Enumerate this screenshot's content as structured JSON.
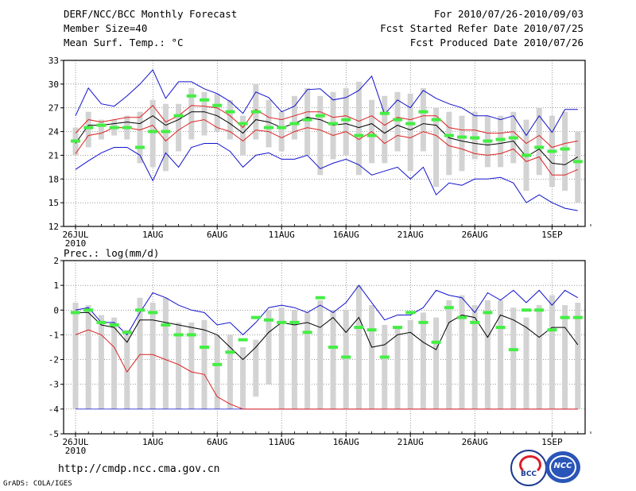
{
  "header": {
    "title": "DERF/NCC/BCC Monthly Forecast",
    "member_size": "Member Size=40",
    "variable": "Mean Surf. Temp.: °C",
    "period": "For 2010/07/26-2010/09/03",
    "refer_date": "Fcst Started Refer Date 2010/07/25",
    "produced_date": "Fcst Produced Date 2010/07/26"
  },
  "footer": {
    "url": "http://cmdp.ncc.cma.gov.cn",
    "credit": "GrADS: COLA/IGES",
    "logo1_text": "BCC",
    "logo2_text": "NCC"
  },
  "colors": {
    "box": "#d3d3d3",
    "median": "#44ee44",
    "mean": "#000000",
    "stddev": "#dd2222",
    "extreme": "#1111cc"
  },
  "chart_data": [
    {
      "type": "box",
      "title": "Mean Surf. Temp.: °C",
      "ylim": [
        12,
        33
      ],
      "yticks": [
        12,
        15,
        18,
        21,
        24,
        27,
        30,
        33
      ],
      "x_tick_labels": [
        "26JUL",
        "1AUG",
        "6AUG",
        "11AUG",
        "16AUG",
        "21AUG",
        "26AUG",
        "1SEP"
      ],
      "x_tick_days": [
        0,
        6,
        11,
        16,
        21,
        26,
        31,
        37
      ],
      "x_sublabel": "2010",
      "days": 40,
      "series": {
        "max": [
          26.0,
          29.5,
          27.5,
          27.2,
          28.5,
          30.0,
          31.8,
          28.2,
          30.3,
          30.3,
          29.4,
          28.8,
          27.8,
          26.3,
          29.0,
          28.3,
          26.5,
          27.2,
          29.3,
          29.4,
          28.0,
          28.3,
          29.2,
          31.0,
          26.2,
          28.0,
          27.0,
          29.2,
          28.2,
          27.5,
          27.0,
          26.0,
          26.0,
          25.5,
          26.0,
          23.5,
          26.0,
          23.9,
          26.8,
          26.8
        ],
        "mean_plus_sd": [
          23.8,
          25.5,
          25.2,
          25.5,
          25.8,
          25.8,
          27.3,
          25.2,
          26.0,
          27.3,
          27.2,
          27.0,
          26.0,
          24.5,
          26.8,
          25.8,
          25.5,
          26.0,
          26.5,
          26.5,
          25.8,
          26.0,
          25.3,
          26.0,
          24.8,
          25.8,
          25.5,
          26.0,
          26.0,
          24.5,
          24.2,
          24.2,
          23.8,
          23.8,
          24.0,
          22.5,
          23.5,
          22.0,
          22.5,
          22.8
        ],
        "mean": [
          22.5,
          24.8,
          24.8,
          25.0,
          25.2,
          25.0,
          26.0,
          24.8,
          25.5,
          26.5,
          26.5,
          26.0,
          25.0,
          23.8,
          25.5,
          25.2,
          24.5,
          25.0,
          25.8,
          25.5,
          24.8,
          25.0,
          24.5,
          25.0,
          23.8,
          24.8,
          24.2,
          25.0,
          24.8,
          23.2,
          22.8,
          22.5,
          22.3,
          22.5,
          22.8,
          20.8,
          21.8,
          20.0,
          19.8,
          20.8
        ],
        "mean_minus_sd": [
          21.2,
          23.5,
          23.8,
          24.5,
          24.5,
          24.2,
          24.8,
          22.8,
          24.2,
          25.2,
          25.5,
          24.5,
          24.0,
          22.8,
          24.2,
          24.0,
          23.2,
          24.0,
          24.5,
          24.2,
          23.5,
          24.0,
          23.0,
          24.0,
          22.5,
          23.5,
          23.2,
          24.0,
          23.5,
          22.2,
          21.8,
          21.2,
          21.0,
          21.2,
          21.8,
          20.2,
          20.8,
          18.5,
          18.5,
          19.2
        ],
        "min": [
          19.2,
          20.3,
          21.3,
          22.0,
          22.0,
          21.0,
          17.8,
          21.3,
          19.5,
          22.0,
          22.5,
          22.5,
          21.5,
          19.5,
          21.0,
          21.3,
          20.5,
          20.5,
          21.0,
          19.3,
          20.0,
          20.5,
          19.8,
          18.5,
          19.0,
          19.5,
          18.0,
          19.5,
          16.0,
          17.5,
          17.2,
          18.0,
          18.0,
          18.2,
          17.5,
          15.0,
          16.0,
          15.0,
          14.3,
          14.0
        ],
        "box_hi": [
          24.5,
          26.5,
          25.5,
          25.5,
          26.0,
          26.5,
          28.0,
          27.5,
          27.5,
          29.5,
          29.0,
          28.8,
          28.0,
          26.0,
          30.0,
          28.0,
          26.5,
          28.5,
          29.5,
          28.5,
          29.0,
          29.5,
          30.3,
          28.0,
          28.5,
          29.0,
          28.8,
          29.5,
          27.0,
          26.5,
          26.0,
          26.5,
          26.0,
          26.0,
          26.5,
          25.5,
          27.0,
          26.0,
          26.5,
          24.0
        ],
        "box_lo": [
          21.0,
          22.0,
          23.0,
          23.5,
          23.0,
          20.0,
          19.5,
          19.0,
          21.5,
          23.0,
          23.5,
          24.0,
          23.0,
          21.0,
          23.0,
          22.0,
          21.5,
          23.0,
          21.0,
          18.5,
          20.5,
          21.0,
          18.5,
          20.0,
          20.0,
          21.5,
          19.0,
          21.5,
          17.0,
          18.5,
          19.0,
          20.5,
          19.5,
          19.5,
          20.0,
          16.5,
          18.5,
          17.0,
          16.5,
          15.0
        ],
        "median": [
          22.8,
          24.5,
          24.8,
          24.5,
          24.5,
          22.0,
          24.0,
          24.0,
          26.0,
          28.5,
          28.0,
          27.3,
          26.5,
          25.0,
          26.5,
          24.5,
          24.5,
          25.0,
          25.5,
          26.0,
          25.0,
          25.5,
          23.5,
          23.5,
          26.3,
          25.5,
          25.0,
          26.5,
          25.5,
          23.5,
          23.3,
          23.2,
          22.8,
          23.0,
          23.2,
          21.0,
          22.0,
          21.5,
          21.8,
          20.2
        ]
      }
    },
    {
      "type": "box",
      "title": "Prec.: log(mm/d)",
      "ylim": [
        -5,
        2
      ],
      "yticks": [
        -5,
        -4,
        -3,
        -2,
        -1,
        0,
        1,
        2
      ],
      "x_tick_labels": [
        "26JUL",
        "1AUG",
        "6AUG",
        "11AUG",
        "16AUG",
        "21AUG",
        "26AUG",
        "1SEP"
      ],
      "x_tick_days": [
        0,
        6,
        11,
        16,
        21,
        26,
        31,
        37
      ],
      "x_sublabel": "2010",
      "days": 40,
      "series": {
        "max": [
          0.0,
          0.1,
          -0.5,
          -0.5,
          -1.0,
          -0.1,
          0.7,
          0.5,
          0.2,
          0.0,
          -0.1,
          -0.6,
          -0.5,
          -1.0,
          -0.5,
          0.1,
          0.2,
          0.1,
          -0.1,
          0.2,
          -0.1,
          0.3,
          1.0,
          0.3,
          -0.4,
          -0.2,
          -0.2,
          0.1,
          0.8,
          0.6,
          0.5,
          -0.1,
          0.7,
          0.4,
          0.8,
          0.3,
          0.8,
          0.2,
          0.8,
          0.5
        ],
        "mean": [
          -0.1,
          -0.1,
          -0.6,
          -0.7,
          -1.3,
          -0.4,
          -0.4,
          -0.5,
          -0.6,
          -0.7,
          -0.8,
          -1.0,
          -1.5,
          -2.0,
          -1.5,
          -0.9,
          -0.5,
          -0.6,
          -0.5,
          -0.7,
          -0.3,
          -0.9,
          -0.3,
          -1.5,
          -1.4,
          -1.0,
          -0.9,
          -1.3,
          -1.6,
          -0.5,
          -0.2,
          -0.3,
          -1.1,
          -0.2,
          -0.4,
          -0.7,
          -1.1,
          -0.7,
          -0.7,
          -1.4
        ],
        "mean_minus_sd": [
          -1.0,
          -0.8,
          -1.0,
          -1.5,
          -2.5,
          -1.8,
          -1.8,
          -2.0,
          -2.2,
          -2.5,
          -2.6,
          -3.5,
          -3.8,
          -4.0,
          -4.0,
          -4.0,
          -4.0,
          -4.0,
          -4.0,
          -4.0,
          -4.0,
          -4.0,
          -4.0,
          -4.0,
          -4.0,
          -4.0,
          -4.0,
          -4.0,
          -4.0,
          -4.0,
          -4.0,
          -4.0,
          -4.0,
          -4.0,
          -4.0,
          -4.0,
          -4.0,
          -4.0,
          -4.0,
          -4.0
        ],
        "min": [
          -4.0,
          -4.0,
          -4.0,
          -4.0,
          -4.0,
          -4.0,
          -4.0,
          -4.0,
          -4.0,
          -4.0,
          -4.0,
          -4.0,
          -4.0,
          -4.0,
          -4.0,
          -4.0,
          -4.0,
          -4.0,
          -4.0,
          -4.0,
          -4.0,
          -4.0,
          -4.0,
          -4.0,
          -4.0,
          -4.0,
          -4.0,
          -4.0,
          -4.0,
          -4.0,
          -4.0,
          -4.0,
          -4.0,
          -4.0,
          -4.0,
          -4.0,
          -4.0,
          -4.0,
          -4.0,
          -4.0
        ],
        "box_hi": [
          0.3,
          0.2,
          -0.2,
          -0.3,
          -0.8,
          0.5,
          0.3,
          0.5,
          -0.5,
          -0.5,
          -0.4,
          -1.0,
          -1.0,
          -1.5,
          -1.2,
          0.0,
          0.1,
          0.0,
          -0.1,
          0.4,
          0.0,
          0.0,
          1.0,
          0.2,
          -0.6,
          -0.7,
          -0.4,
          -0.1,
          -0.3,
          0.4,
          0.6,
          0.2,
          0.4,
          0.4,
          0.1,
          -0.3,
          0.2,
          0.6,
          0.2,
          0.3
        ],
        "box_lo": [
          -4.0,
          -4.0,
          -4.0,
          -4.0,
          -4.0,
          -4.0,
          -4.0,
          -4.0,
          -4.0,
          -4.0,
          -4.0,
          -4.0,
          -4.0,
          -4.0,
          -3.5,
          -3.0,
          -4.0,
          -4.0,
          -4.0,
          -4.0,
          -4.0,
          -4.0,
          -4.0,
          -4.0,
          -4.0,
          -4.0,
          -4.0,
          -4.0,
          -4.0,
          -4.0,
          -4.0,
          -4.0,
          -4.0,
          -4.0,
          -4.0,
          -4.0,
          -4.0,
          -4.0,
          -4.0,
          -4.0
        ],
        "median": [
          -0.1,
          0.0,
          -0.5,
          -0.6,
          -0.9,
          0.0,
          -0.1,
          -0.6,
          -1.0,
          -1.0,
          -1.5,
          -2.2,
          -1.7,
          -1.2,
          -0.3,
          -0.4,
          -0.5,
          -0.5,
          -0.9,
          0.5,
          -1.5,
          -1.9,
          -0.7,
          -0.8,
          -1.9,
          -0.7,
          -0.1,
          -0.5,
          -1.3,
          0.1,
          -0.3,
          -0.5,
          -0.1,
          -0.7,
          -1.6,
          0.0,
          0.0,
          -0.8,
          -0.3,
          -0.3
        ]
      }
    }
  ]
}
